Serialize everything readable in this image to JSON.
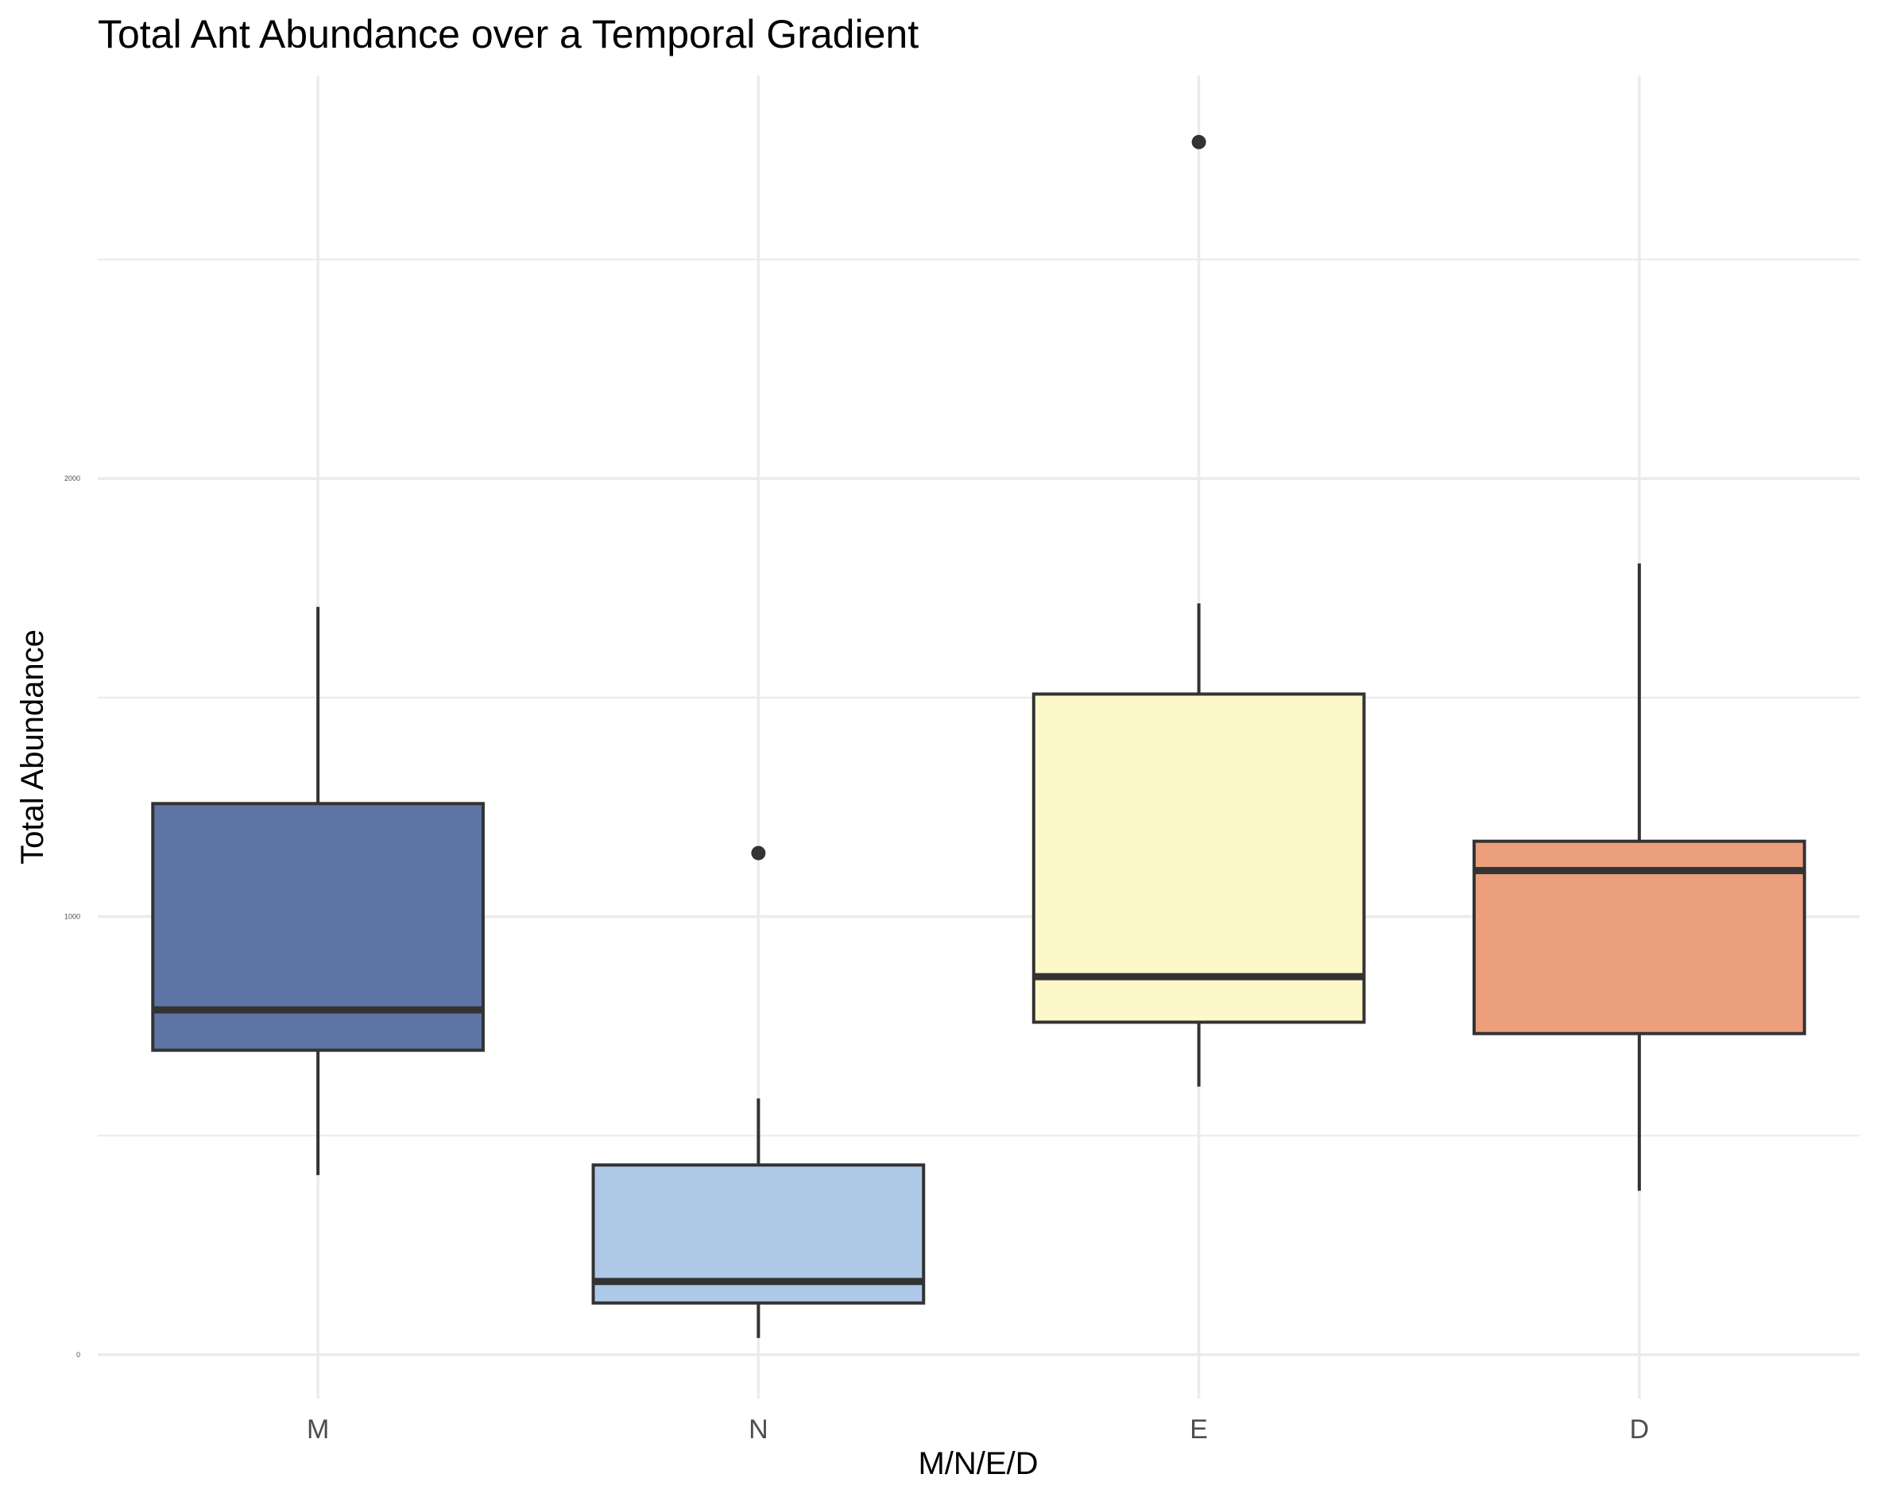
{
  "chart_data": {
    "type": "box",
    "title": "Total Ant Abundance over a Temporal Gradient",
    "xlabel": "M/N/E/D",
    "ylabel": "Total Abundance",
    "categories": [
      "M",
      "N",
      "E",
      "D"
    ],
    "yticks": [
      0,
      1000,
      2000
    ],
    "ylim": [
      -100,
      2920
    ],
    "grid": true,
    "legend": "none",
    "boxes": [
      {
        "category": "M",
        "min": 410,
        "q1": 695,
        "median": 787,
        "q3": 1258,
        "max": 1707,
        "outliers": [],
        "color": "#5e74a4"
      },
      {
        "category": "N",
        "min": 38,
        "q1": 118,
        "median": 167,
        "q3": 433,
        "max": 585,
        "outliers": [
          1145
        ],
        "color": "#aec9e7"
      },
      {
        "category": "E",
        "min": 612,
        "q1": 759,
        "median": 863,
        "q3": 1508,
        "max": 1715,
        "outliers": [
          2768
        ],
        "color": "#fdf8c9"
      },
      {
        "category": "D",
        "min": 374,
        "q1": 733,
        "median": 1105,
        "q3": 1172,
        "max": 1806,
        "outliers": [],
        "color": "#eb9f7d"
      }
    ]
  }
}
